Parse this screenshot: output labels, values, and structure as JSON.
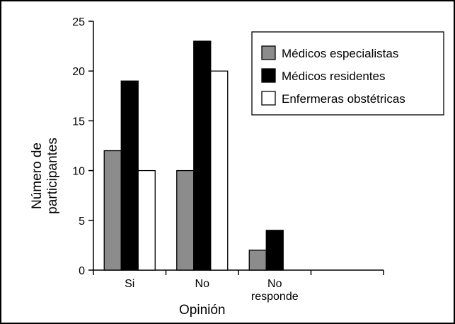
{
  "chart_data": {
    "type": "bar",
    "title": "",
    "xlabel": "Opinión",
    "ylabel_lines": [
      "Número de",
      "participantes"
    ],
    "ylim": [
      0,
      25
    ],
    "yticks": [
      0,
      5,
      10,
      15,
      20,
      25
    ],
    "categories": [
      {
        "lines": [
          "Si"
        ]
      },
      {
        "lines": [
          "No"
        ]
      },
      {
        "lines": [
          "No",
          "responde"
        ]
      },
      {
        "lines": []
      }
    ],
    "series": [
      {
        "name": "Médicos especialistas",
        "color": "#8c8c8c",
        "values": [
          12,
          10,
          2,
          null
        ]
      },
      {
        "name": "Médicos residentes",
        "color": "#000000",
        "values": [
          19,
          23,
          4,
          null
        ]
      },
      {
        "name": "Enfermeras obstétricas",
        "color": "#ffffff",
        "values": [
          10,
          20,
          0,
          null
        ]
      }
    ],
    "legend_position": "top-right",
    "grid": false
  }
}
